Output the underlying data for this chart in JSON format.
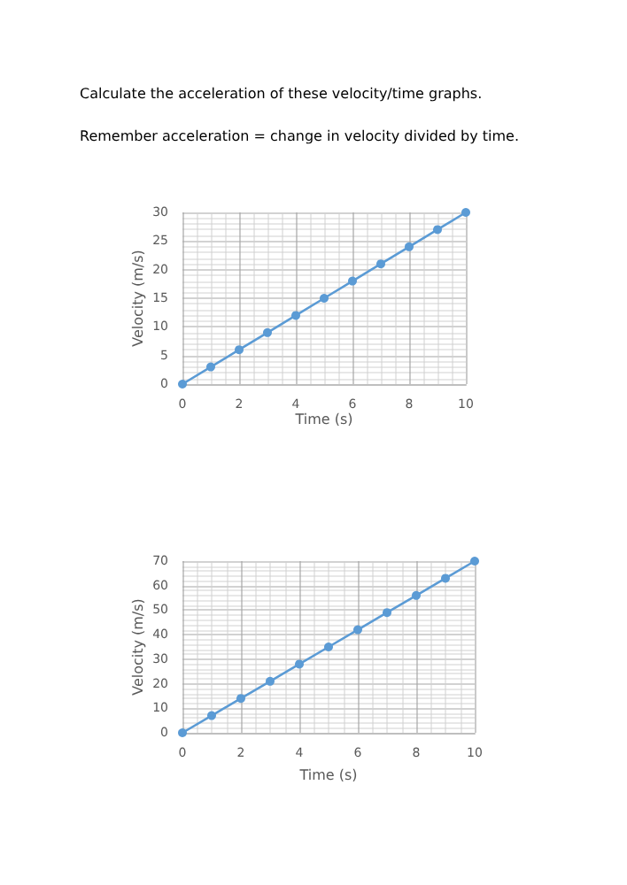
{
  "chart_data": [
    {
      "type": "line",
      "title": "Calculate the acceleration of these velocity/time graphs.",
      "subtitle": "Remember acceleration = change in velocity divided by time.",
      "xlabel": "Time (s)",
      "ylabel": "Velocity (m/s)",
      "x": [
        0,
        1,
        2,
        3,
        4,
        5,
        6,
        7,
        8,
        9,
        10
      ],
      "series": [
        {
          "color": "#5b9bd5",
          "values": [
            0,
            3,
            6,
            9,
            12,
            15,
            18,
            21,
            24,
            27,
            30
          ]
        }
      ],
      "xlim": [
        0,
        10
      ],
      "xticks": [
        0,
        2,
        4,
        6,
        8,
        10
      ],
      "ylim": [
        0,
        30
      ],
      "yticks": [
        0,
        5,
        10,
        15,
        20,
        25,
        30
      ],
      "grid": true,
      "marker": "circle",
      "line_style": "solid"
    },
    {
      "type": "line",
      "xlabel": "Time (s)",
      "ylabel": "Velocity (m/s)",
      "x": [
        0,
        1,
        2,
        3,
        4,
        5,
        6,
        7,
        8,
        9,
        10
      ],
      "series": [
        {
          "color": "#5b9bd5",
          "values": [
            0,
            7,
            14,
            21,
            28,
            35,
            42,
            49,
            56,
            63,
            70
          ]
        }
      ],
      "xlim": [
        0,
        10
      ],
      "xticks": [
        0,
        2,
        4,
        6,
        8,
        10
      ],
      "ylim": [
        0,
        70
      ],
      "yticks": [
        0,
        10,
        20,
        30,
        40,
        50,
        60,
        70
      ],
      "grid": true,
      "marker": "circle",
      "line_style": "solid"
    }
  ]
}
